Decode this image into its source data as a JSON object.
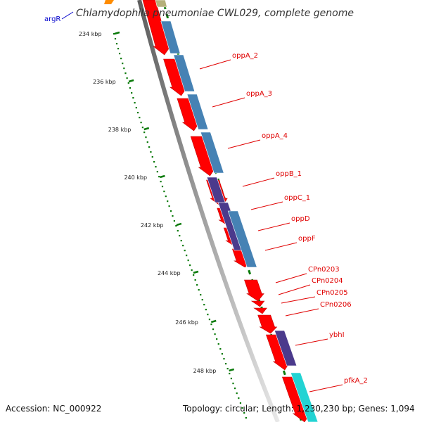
{
  "title": "Chlamydophila pneumoniae CWL029, complete genome",
  "top_label": "argR",
  "ticks": [
    "234 kbp",
    "236 kbp",
    "238 kbp",
    "240 kbp",
    "242 kbp",
    "244 kbp",
    "246 kbp",
    "248 kbp"
  ],
  "gene_labels": [
    "oppA_2",
    "oppA_3",
    "oppA_4",
    "oppB_1",
    "oppC_1",
    "oppD",
    "oppF",
    "CPn0203",
    "CPn0204",
    "CPn0205",
    "CPn0206",
    "ybhI",
    "pfkA_2"
  ],
  "footer": {
    "accession": "Accession: NC_000922",
    "topology": "Topology: circular; Length: 1,230,230 bp; Genes: 1,094"
  },
  "colors": {
    "gene_red": "#ff0000",
    "cog_steelblue": "#4682b4",
    "cog_purple": "#4b3a8c",
    "cog_cyan": "#22d3d3",
    "cog_orange": "#ff8c00",
    "cog_khaki": "#b5b07a",
    "backbone": "#777777",
    "tick_green": "#0a7a0a",
    "label_red": "#e00000",
    "label_blue": "#0000cc"
  }
}
